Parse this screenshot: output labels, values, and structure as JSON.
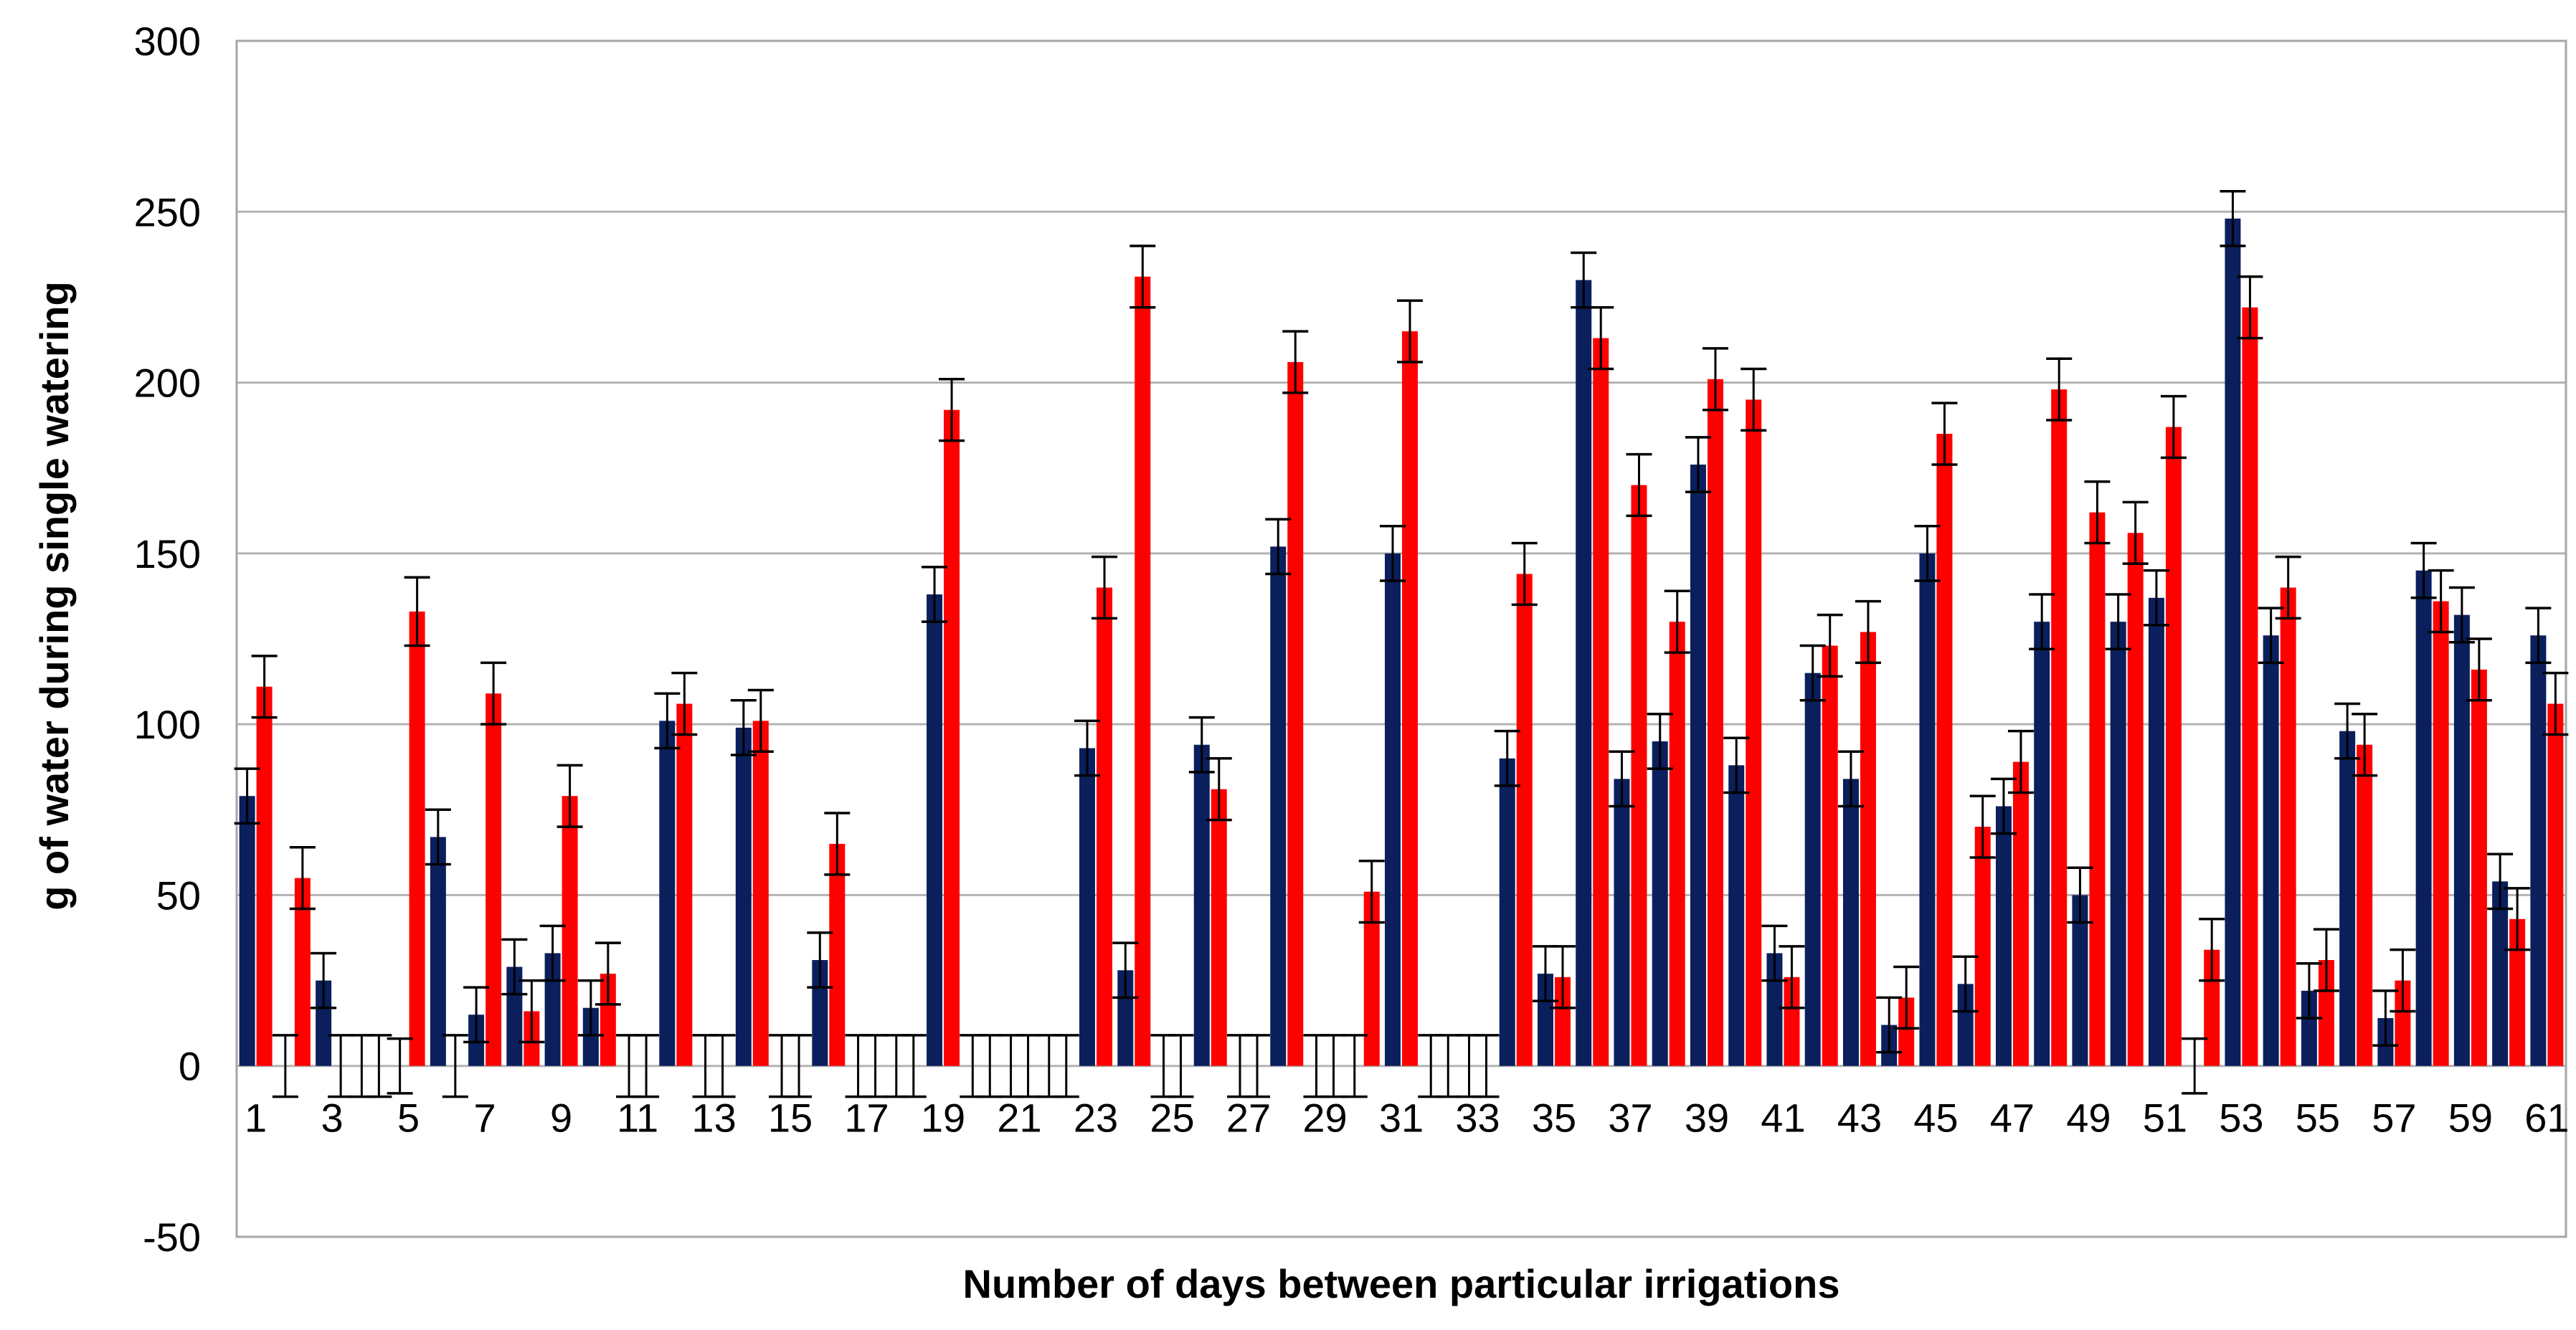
{
  "chart_data": {
    "type": "bar",
    "title": "",
    "xlabel": "Number of days between particular irrigations",
    "ylabel": "g of water during single watering",
    "ylim": [
      -50,
      300
    ],
    "yticks": [
      -50,
      0,
      50,
      100,
      150,
      200,
      250,
      300
    ],
    "grid": true,
    "legend": "none",
    "x_tick_every": 2,
    "categories": [
      1,
      2,
      3,
      4,
      5,
      6,
      7,
      8,
      9,
      10,
      11,
      12,
      13,
      14,
      15,
      16,
      17,
      18,
      19,
      20,
      21,
      22,
      23,
      24,
      25,
      26,
      27,
      28,
      29,
      30,
      31,
      32,
      33,
      34,
      35,
      36,
      37,
      38,
      39,
      40,
      41,
      42,
      43,
      44,
      45,
      46,
      47,
      48,
      49,
      50,
      51,
      52,
      53,
      54,
      55,
      56,
      57,
      58,
      59,
      60,
      61
    ],
    "series": [
      {
        "name": "series-1",
        "color": "#0a1f5c",
        "values": [
          79,
          0,
          25,
          0,
          0,
          67,
          15,
          29,
          33,
          17,
          0,
          101,
          0,
          99,
          0,
          31,
          0,
          0,
          138,
          0,
          0,
          0,
          93,
          28,
          0,
          94,
          0,
          152,
          0,
          0,
          150,
          0,
          0,
          90,
          27,
          230,
          84,
          95,
          176,
          88,
          33,
          115,
          84,
          12,
          150,
          24,
          76,
          130,
          50,
          130,
          137,
          0,
          248,
          126,
          22,
          98,
          14,
          145,
          132,
          54,
          126
        ],
        "errors": [
          8,
          9,
          8,
          9,
          8,
          8,
          8,
          8,
          8,
          8,
          9,
          8,
          9,
          8,
          9,
          8,
          9,
          9,
          8,
          9,
          9,
          9,
          8,
          8,
          9,
          8,
          9,
          8,
          9,
          9,
          8,
          9,
          9,
          8,
          8,
          8,
          8,
          8,
          8,
          8,
          8,
          8,
          8,
          8,
          8,
          8,
          8,
          8,
          8,
          8,
          8,
          8,
          8,
          8,
          8,
          8,
          8,
          8,
          8,
          8,
          8
        ]
      },
      {
        "name": "series-2",
        "color": "#ff0000",
        "values": [
          111,
          55,
          0,
          0,
          133,
          0,
          109,
          16,
          79,
          27,
          0,
          106,
          0,
          101,
          0,
          65,
          0,
          0,
          192,
          0,
          0,
          0,
          140,
          231,
          0,
          81,
          0,
          206,
          0,
          51,
          215,
          0,
          0,
          144,
          26,
          213,
          170,
          130,
          201,
          195,
          26,
          123,
          127,
          20,
          185,
          70,
          89,
          198,
          162,
          156,
          187,
          34,
          222,
          140,
          31,
          94,
          25,
          136,
          116,
          43,
          106
        ],
        "errors": [
          9,
          9,
          9,
          9,
          10,
          9,
          9,
          9,
          9,
          9,
          9,
          9,
          9,
          9,
          9,
          9,
          9,
          9,
          9,
          9,
          9,
          9,
          9,
          9,
          9,
          9,
          9,
          9,
          9,
          9,
          9,
          9,
          9,
          9,
          9,
          9,
          9,
          9,
          9,
          9,
          9,
          9,
          9,
          9,
          9,
          9,
          9,
          9,
          9,
          9,
          9,
          9,
          9,
          9,
          9,
          9,
          9,
          9,
          9,
          9,
          9
        ]
      }
    ]
  }
}
